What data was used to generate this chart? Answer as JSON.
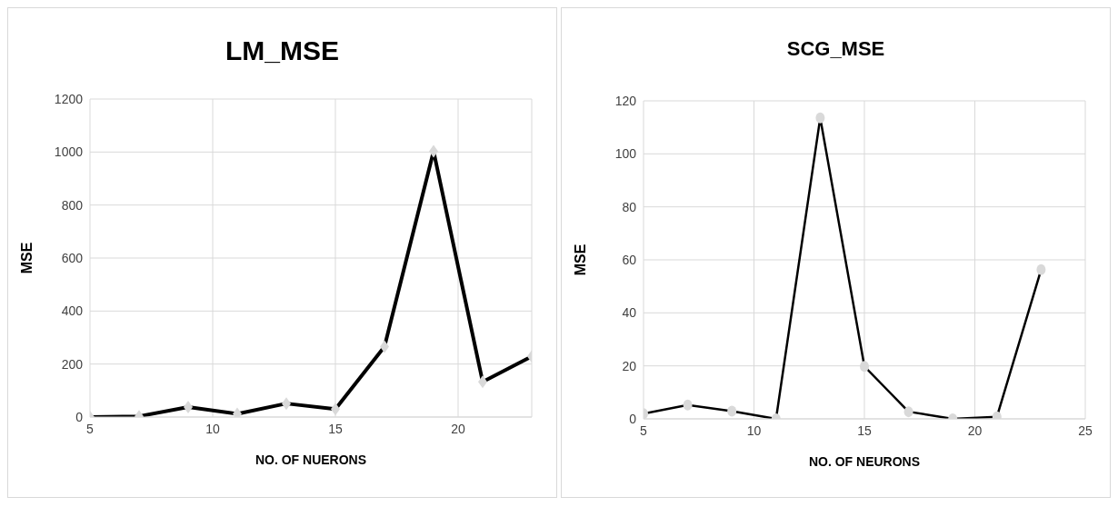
{
  "chart_data": [
    {
      "type": "line",
      "title": "LM_MSE",
      "xlabel": "NO. OF NUERONS",
      "ylabel": "MSE",
      "x": [
        5,
        7,
        9,
        11,
        13,
        15,
        17,
        19,
        21,
        23
      ],
      "series": [
        {
          "color": "#000000",
          "values": [
            0,
            3,
            38,
            12,
            51,
            30,
            266,
            1003,
            133,
            229
          ]
        }
      ],
      "xlim": [
        5,
        23
      ],
      "xticks": [
        5,
        10,
        15,
        20
      ],
      "ylim": [
        0,
        1200
      ],
      "yticks": [
        0,
        200,
        400,
        600,
        800,
        1000,
        1200
      ],
      "grid": true,
      "marker": "diamond",
      "line_style": "solid"
    },
    {
      "type": "line",
      "title": "SCG_MSE",
      "xlabel": "NO. OF NEURONS",
      "ylabel": "MSE",
      "x": [
        5,
        7,
        9,
        11,
        13,
        15,
        17,
        19,
        21,
        23
      ],
      "series": [
        {
          "color": "#000000",
          "values": [
            2,
            5.2,
            2.9,
            0,
            113.6,
            19.8,
            2.7,
            0,
            0.8,
            56.3
          ]
        }
      ],
      "xlim": [
        5,
        25
      ],
      "xticks": [
        5,
        10,
        15,
        20,
        25
      ],
      "ylim": [
        0,
        120
      ],
      "yticks": [
        0,
        20,
        40,
        60,
        80,
        100,
        120
      ],
      "grid": true,
      "marker": "circle",
      "line_style": "solid"
    }
  ]
}
